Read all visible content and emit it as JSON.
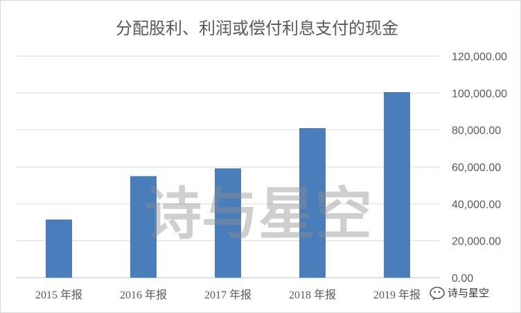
{
  "chart_data": {
    "type": "bar",
    "title": "分配股利、利润或偿付利息支付的现金",
    "categories": [
      "2015 年报",
      "2016 年报",
      "2017 年报",
      "2018 年报",
      "2019 年报"
    ],
    "values": [
      31500,
      55000,
      59200,
      81000,
      100500
    ],
    "y_ticks": [
      "0.00",
      "20,000.00",
      "40,000.00",
      "60,000.00",
      "80,000.00",
      "100,000.00",
      "120,000.00"
    ],
    "ylim": [
      0,
      120000
    ],
    "y_axis_side": "right",
    "grid": true,
    "bar_color": "#4a7ebb",
    "legend": "none"
  },
  "watermark": {
    "text": "诗与星空"
  },
  "brand": {
    "text": "诗与星空"
  }
}
